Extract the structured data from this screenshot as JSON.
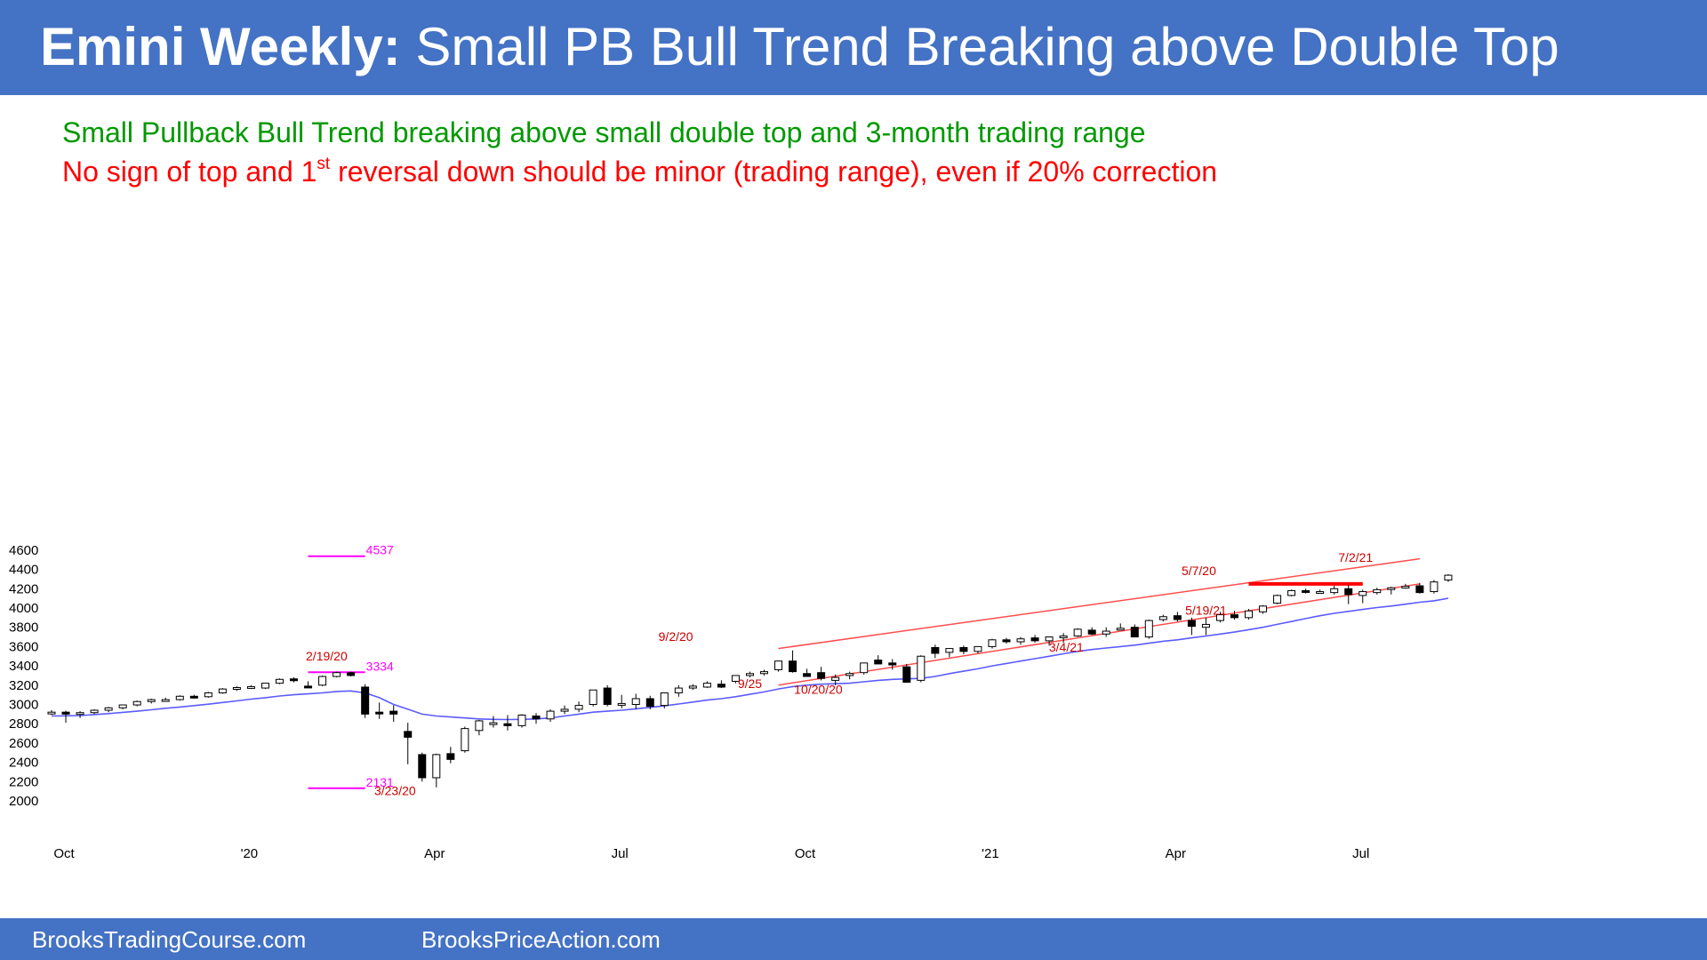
{
  "title": {
    "bold": "Emini Weekly:",
    "rest": " Small PB Bull Trend Breaking above Double Top"
  },
  "subtitle1": "Small Pullback Bull Trend breaking above small double top and 3-month trading range",
  "subtitle2": {
    "before": "No sign of top and 1",
    "sup": "st",
    "after": " reversal down should be minor (trading range), even if 20% correction"
  },
  "footer": {
    "left": "BrooksTradingCourse.com",
    "right": "BrooksPriceAction.com"
  },
  "colors": {
    "header": "#4472C4",
    "bull_body": "#ffffff",
    "bear_body": "#000000",
    "ema": "#5b5bff",
    "channel": "#ff4d4d",
    "magnet": "#ff00ff",
    "resistance": "#ff0000",
    "annotation": "#cc0000"
  },
  "chart_data": {
    "type": "candlestick",
    "title": "",
    "xlabel": "",
    "ylabel": "",
    "ylim": [
      1900,
      4650
    ],
    "yticks": [
      2000,
      2200,
      2400,
      2600,
      2800,
      3000,
      3200,
      3400,
      3600,
      3800,
      4000,
      4200,
      4400,
      4600
    ],
    "xticks": [
      {
        "label": "Oct",
        "week": 0
      },
      {
        "label": "'20",
        "week": 13
      },
      {
        "label": "Apr",
        "week": 26
      },
      {
        "label": "Jul",
        "week": 39
      },
      {
        "label": "Oct",
        "week": 52
      },
      {
        "label": "'21",
        "week": 65
      },
      {
        "label": "Apr",
        "week": 78
      },
      {
        "label": "Jul",
        "week": 91
      }
    ],
    "candles": [
      [
        2910,
        2940,
        2890,
        2920
      ],
      [
        2920,
        2935,
        2810,
        2900
      ],
      [
        2900,
        2930,
        2860,
        2915
      ],
      [
        2915,
        2950,
        2900,
        2940
      ],
      [
        2940,
        2975,
        2920,
        2965
      ],
      [
        2965,
        3000,
        2950,
        2995
      ],
      [
        2995,
        3040,
        2980,
        3030
      ],
      [
        3030,
        3060,
        3010,
        3050
      ],
      [
        3050,
        3070,
        3030,
        3050
      ],
      [
        3050,
        3095,
        3040,
        3085
      ],
      [
        3085,
        3100,
        3060,
        3080
      ],
      [
        3080,
        3130,
        3070,
        3120
      ],
      [
        3120,
        3170,
        3110,
        3160
      ],
      [
        3160,
        3190,
        3140,
        3175
      ],
      [
        3175,
        3200,
        3160,
        3185
      ],
      [
        3170,
        3220,
        3160,
        3220
      ],
      [
        3220,
        3270,
        3210,
        3260
      ],
      [
        3265,
        3280,
        3230,
        3250
      ],
      [
        3190,
        3240,
        3170,
        3180
      ],
      [
        3200,
        3300,
        3190,
        3290
      ],
      [
        3290,
        3340,
        3280,
        3330
      ],
      [
        3330,
        3340,
        3290,
        3300
      ],
      [
        3180,
        3210,
        2860,
        2900
      ],
      [
        2920,
        3020,
        2850,
        2910
      ],
      [
        2930,
        2990,
        2820,
        2900
      ],
      [
        2720,
        2810,
        2380,
        2660
      ],
      [
        2480,
        2500,
        2200,
        2240
      ],
      [
        2240,
        2490,
        2140,
        2480
      ],
      [
        2490,
        2560,
        2390,
        2430
      ],
      [
        2520,
        2770,
        2500,
        2750
      ],
      [
        2730,
        2840,
        2680,
        2830
      ],
      [
        2800,
        2880,
        2760,
        2810
      ],
      [
        2800,
        2890,
        2730,
        2780
      ],
      [
        2780,
        2900,
        2760,
        2890
      ],
      [
        2880,
        2910,
        2800,
        2850
      ],
      [
        2850,
        2950,
        2820,
        2930
      ],
      [
        2930,
        2990,
        2900,
        2950
      ],
      [
        2950,
        3030,
        2920,
        2990
      ],
      [
        3000,
        3140,
        2980,
        3150
      ],
      [
        3170,
        3200,
        2980,
        3000
      ],
      [
        3000,
        3100,
        2960,
        3010
      ],
      [
        3000,
        3110,
        2950,
        3060
      ],
      [
        3060,
        3090,
        2950,
        2980
      ],
      [
        2990,
        3120,
        2960,
        3120
      ],
      [
        3120,
        3200,
        3080,
        3170
      ],
      [
        3170,
        3210,
        3150,
        3190
      ],
      [
        3180,
        3240,
        3170,
        3220
      ],
      [
        3210,
        3250,
        3170,
        3180
      ],
      [
        3240,
        3300,
        3220,
        3300
      ],
      [
        3300,
        3340,
        3280,
        3320
      ],
      [
        3320,
        3360,
        3300,
        3340
      ],
      [
        3360,
        3440,
        3340,
        3450
      ],
      [
        3450,
        3560,
        3330,
        3340
      ],
      [
        3320,
        3370,
        3290,
        3290
      ],
      [
        3330,
        3390,
        3250,
        3270
      ],
      [
        3250,
        3310,
        3200,
        3280
      ],
      [
        3300,
        3340,
        3260,
        3320
      ],
      [
        3330,
        3430,
        3310,
        3430
      ],
      [
        3460,
        3510,
        3420,
        3420
      ],
      [
        3430,
        3470,
        3360,
        3410
      ],
      [
        3390,
        3420,
        3230,
        3230
      ],
      [
        3250,
        3510,
        3230,
        3500
      ],
      [
        3590,
        3620,
        3480,
        3530
      ],
      [
        3540,
        3560,
        3490,
        3580
      ],
      [
        3590,
        3610,
        3520,
        3550
      ],
      [
        3550,
        3600,
        3530,
        3600
      ],
      [
        3600,
        3680,
        3580,
        3670
      ],
      [
        3670,
        3690,
        3630,
        3650
      ],
      [
        3650,
        3700,
        3620,
        3680
      ],
      [
        3690,
        3720,
        3640,
        3660
      ],
      [
        3660,
        3700,
        3610,
        3700
      ],
      [
        3700,
        3740,
        3640,
        3710
      ],
      [
        3710,
        3790,
        3700,
        3780
      ],
      [
        3770,
        3800,
        3720,
        3730
      ],
      [
        3730,
        3800,
        3700,
        3760
      ],
      [
        3780,
        3840,
        3770,
        3790
      ],
      [
        3800,
        3830,
        3700,
        3700
      ],
      [
        3700,
        3880,
        3680,
        3870
      ],
      [
        3880,
        3930,
        3860,
        3910
      ],
      [
        3920,
        3960,
        3860,
        3880
      ],
      [
        3870,
        3900,
        3720,
        3810
      ],
      [
        3800,
        3900,
        3720,
        3830
      ],
      [
        3870,
        3960,
        3850,
        3930
      ],
      [
        3930,
        3970,
        3880,
        3900
      ],
      [
        3900,
        3990,
        3880,
        3970
      ],
      [
        3960,
        4030,
        3940,
        4020
      ],
      [
        4050,
        4140,
        4040,
        4130
      ],
      [
        4130,
        4190,
        4120,
        4180
      ],
      [
        4180,
        4200,
        4150,
        4170
      ],
      [
        4170,
        4190,
        4160,
        4170
      ],
      [
        4160,
        4230,
        4140,
        4200
      ],
      [
        4200,
        4240,
        4040,
        4140
      ],
      [
        4130,
        4190,
        4050,
        4170
      ],
      [
        4160,
        4210,
        4140,
        4190
      ],
      [
        4210,
        4220,
        4140,
        4210
      ],
      [
        4210,
        4250,
        4200,
        4225
      ],
      [
        4230,
        4260,
        4150,
        4160
      ],
      [
        4170,
        4290,
        4150,
        4270
      ],
      [
        4290,
        4350,
        4270,
        4340
      ]
    ],
    "ema": [
      2880,
      2882,
      2885,
      2895,
      2905,
      2918,
      2930,
      2945,
      2960,
      2973,
      2988,
      3003,
      3020,
      3037,
      3055,
      3070,
      3088,
      3100,
      3110,
      3120,
      3135,
      3140,
      3120,
      3070,
      3000,
      2950,
      2900,
      2880,
      2870,
      2860,
      2850,
      2845,
      2843,
      2845,
      2850,
      2860,
      2880,
      2900,
      2920,
      2930,
      2940,
      2955,
      2970,
      2985,
      3005,
      3025,
      3045,
      3060,
      3080,
      3105,
      3130,
      3160,
      3185,
      3200,
      3210,
      3215,
      3220,
      3235,
      3250,
      3260,
      3265,
      3270,
      3290,
      3320,
      3345,
      3370,
      3400,
      3425,
      3450,
      3475,
      3500,
      3525,
      3550,
      3570,
      3585,
      3600,
      3615,
      3635,
      3655,
      3670,
      3690,
      3710,
      3730,
      3750,
      3775,
      3800,
      3830,
      3860,
      3890,
      3920,
      3945,
      3965,
      3985,
      4005,
      4020,
      4040,
      4060,
      4075,
      4100
    ],
    "channel_lines": [
      {
        "from": [
          51,
          3200
        ],
        "to": [
          96,
          4250
        ]
      },
      {
        "from": [
          51,
          3580
        ],
        "to": [
          96,
          4510
        ]
      }
    ],
    "double_top_level": {
      "from": [
        84,
        4250
      ],
      "to": [
        92,
        4250
      ]
    },
    "magnets": [
      {
        "from": [
          18,
          4537
        ],
        "to": [
          22,
          4537
        ],
        "label": "4537",
        "value": 4537
      },
      {
        "from": [
          18,
          3334
        ],
        "to": [
          22,
          3334
        ],
        "label": "3334",
        "value": 3334
      },
      {
        "from": [
          18,
          2131
        ],
        "to": [
          22,
          2131
        ],
        "label": "2131",
        "value": 2131
      }
    ],
    "annotations": [
      {
        "text": "2/19/20",
        "week": 19.3,
        "value": 3455
      },
      {
        "text": "3/23/20",
        "week": 24.1,
        "value": 2062
      },
      {
        "text": "9/2/20",
        "week": 43.8,
        "value": 3660
      },
      {
        "text": "9/25",
        "week": 49,
        "value": 3170
      },
      {
        "text": "10/20/20",
        "week": 53.8,
        "value": 3110
      },
      {
        "text": "3/4/21",
        "week": 71.2,
        "value": 3550
      },
      {
        "text": "5/19/21",
        "week": 81,
        "value": 3930
      },
      {
        "text": "5/7/20",
        "week": 80.5,
        "value": 4340
      },
      {
        "text": "7/2/21",
        "week": 91.5,
        "value": 4480
      }
    ]
  }
}
